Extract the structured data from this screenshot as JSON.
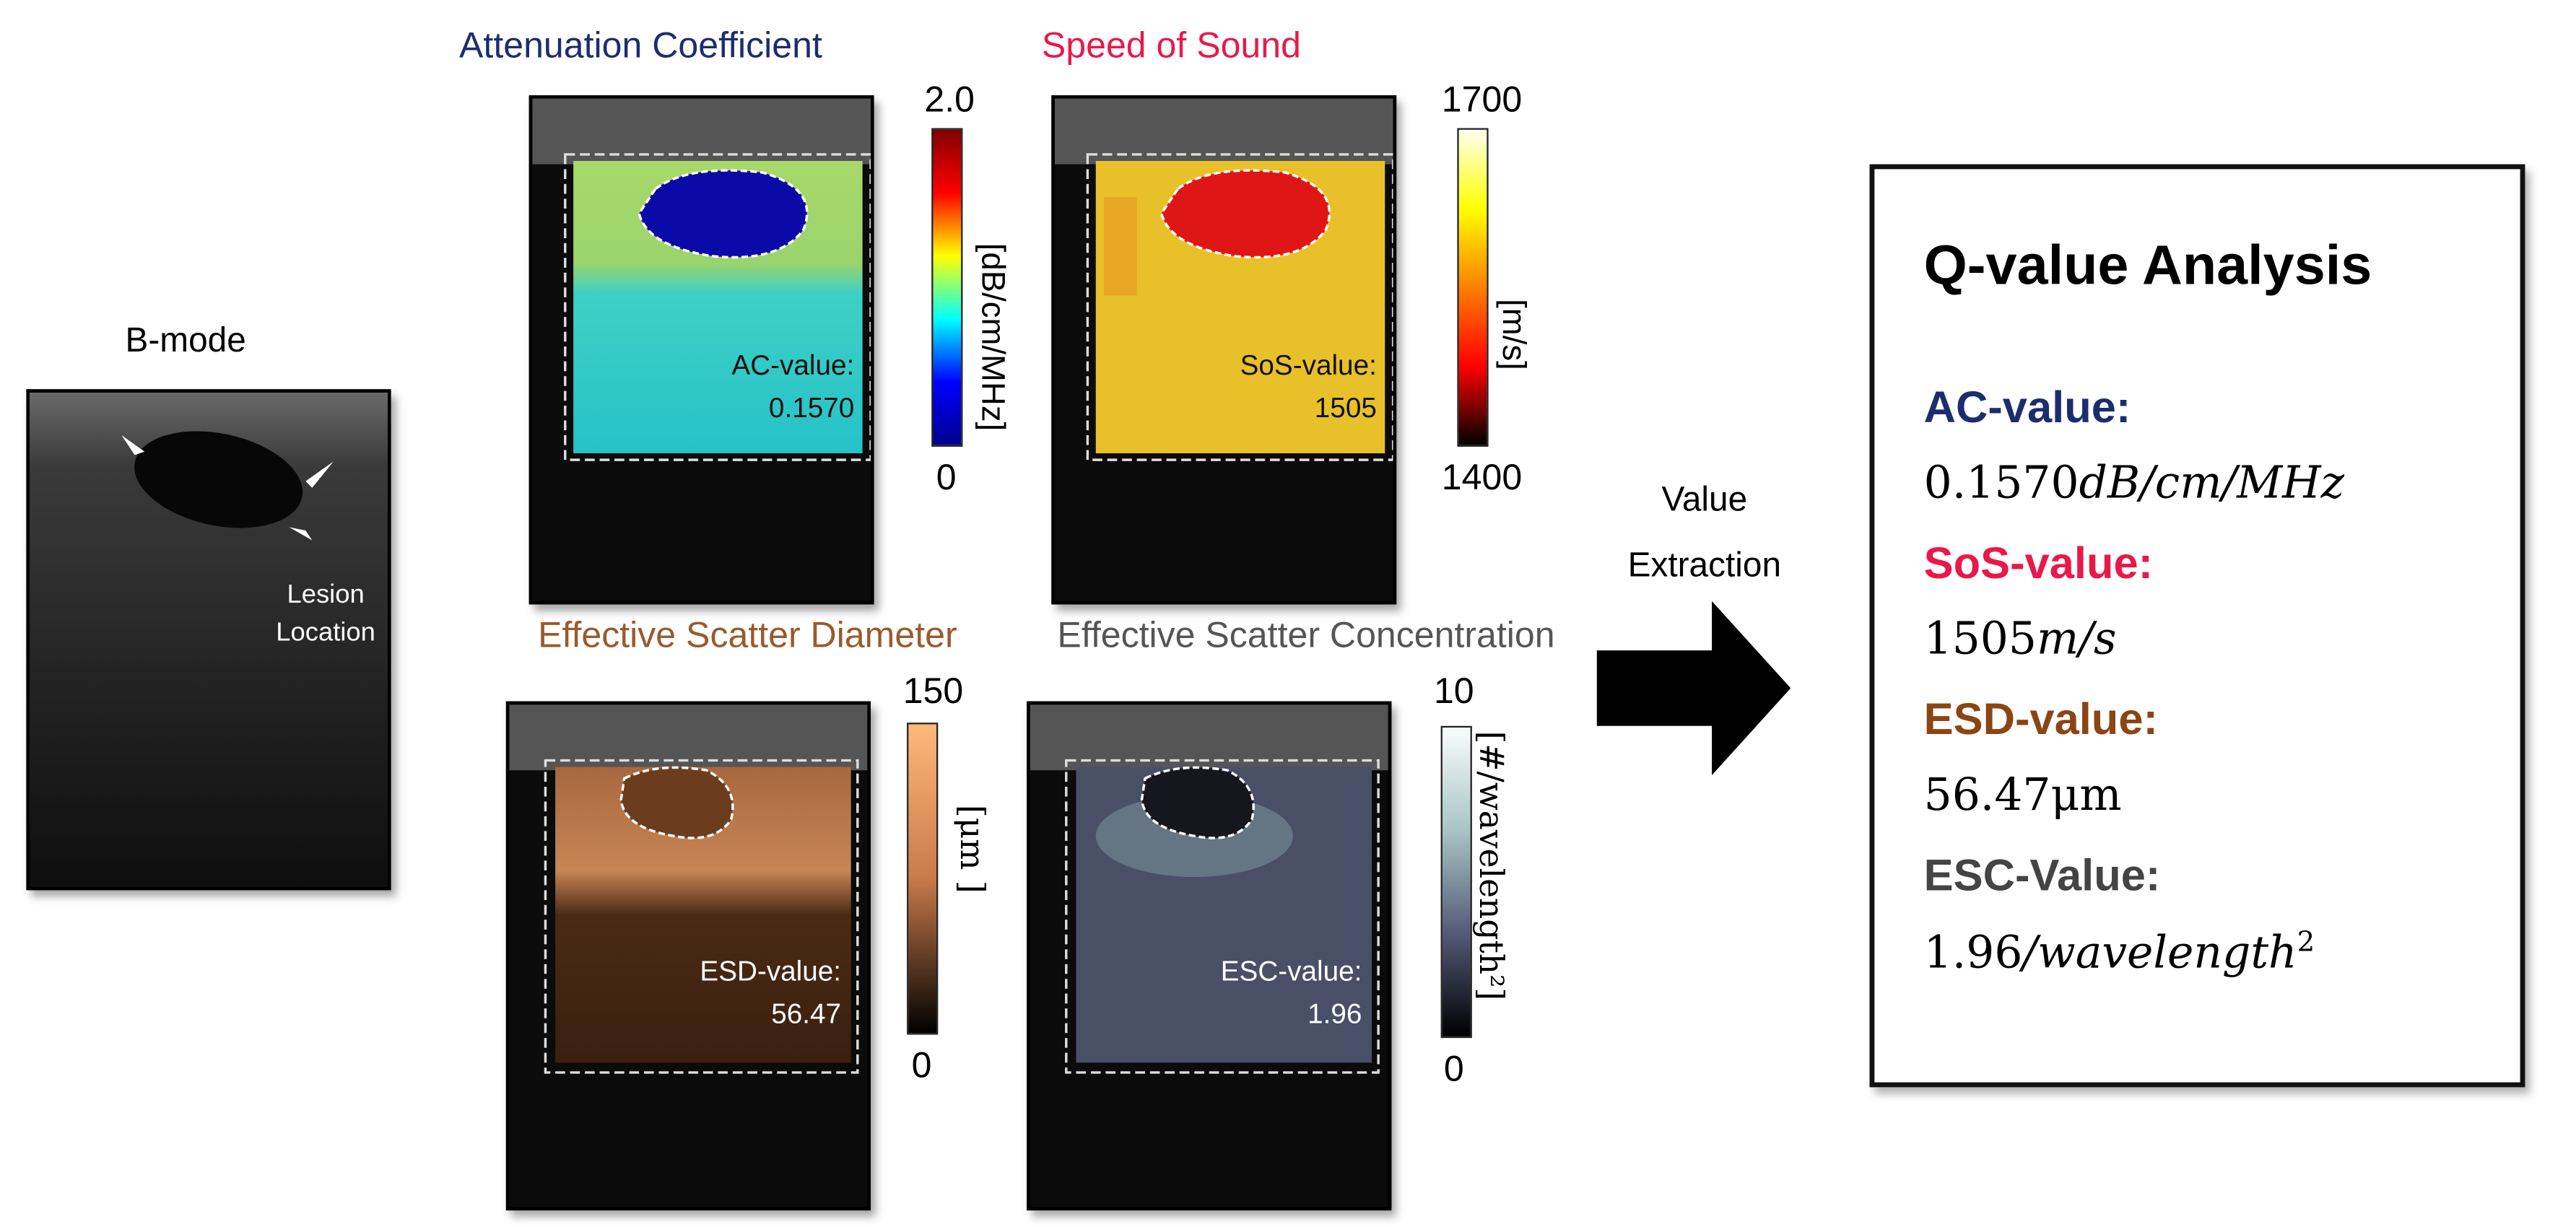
{
  "bmode": {
    "title": "B-mode",
    "annotation_line1": "Lesion",
    "annotation_line2": "Location"
  },
  "panels": [
    {
      "id": "ac",
      "title": "Attenuation Coefficient",
      "title_color": "#1c2d6e",
      "cb_max": "2.0",
      "cb_min": "0",
      "unit": "[dB/cm/MHz]",
      "value_label": "AC-value:",
      "value": "0.1570",
      "colormap": "jet"
    },
    {
      "id": "sos",
      "title": "Speed of Sound",
      "title_color": "#e8194a",
      "cb_max": "1700",
      "cb_min": "1400",
      "unit": "[m/s]",
      "value_label": "SoS-value:",
      "value": "1505",
      "colormap": "hot"
    },
    {
      "id": "esd",
      "title": "Effective Scatter Diameter",
      "title_color": "#9a5a2c",
      "cb_max": "150",
      "cb_min": "0",
      "unit": "[μm ]",
      "value_label": "ESD-value:",
      "value": "56.47",
      "colormap": "copper"
    },
    {
      "id": "esc",
      "title": "Effective Scatter Concentration",
      "title_color": "#555555",
      "cb_max": "10",
      "cb_min": "0",
      "unit": "[#/wavelength²]",
      "value_label": "ESC-value:",
      "value": "1.96",
      "colormap": "bone"
    }
  ],
  "arrow": {
    "label_line1": "Value",
    "label_line2": "Extraction"
  },
  "qbox": {
    "title": "Q-value Analysis",
    "items": [
      {
        "label": "AC-value:",
        "color": "#1c2d6e",
        "number": "0.1570",
        "unit": "dB/cm/MHz"
      },
      {
        "label": "SoS-value:",
        "color": "#e8194a",
        "number": "1505",
        "unit": "m/s"
      },
      {
        "label": "ESD-value:",
        "color": "#8b4513",
        "number": "56.47",
        "unit": "μm"
      },
      {
        "label": "ESC-Value:",
        "color": "#444444",
        "number": "1.96",
        "unit": "/wavelength",
        "sup": "2"
      }
    ]
  }
}
